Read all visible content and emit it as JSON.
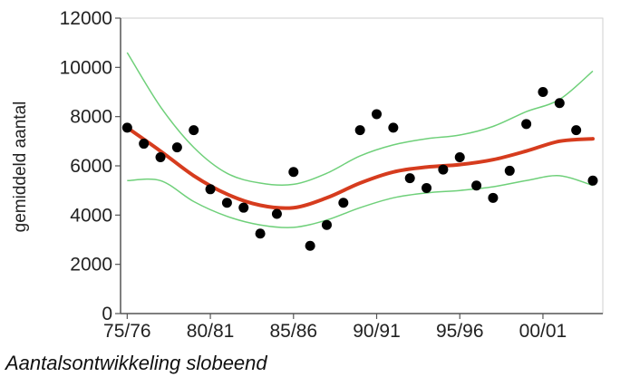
{
  "caption": "Aantalsontwikkeling slobeend",
  "chart_data": {
    "type": "scatter",
    "xlabel": "",
    "ylabel": "gemiddeld aantal",
    "ylim": [
      0,
      12000
    ],
    "yticks": [
      0,
      2000,
      4000,
      6000,
      8000,
      10000,
      12000
    ],
    "x_tick_labels": [
      "75/76",
      "80/81",
      "85/86",
      "90/91",
      "95/96",
      "00/01"
    ],
    "x_tick_positions": [
      1,
      6,
      11,
      16,
      21,
      26
    ],
    "xlim": [
      0.6,
      29.6
    ],
    "grid": false,
    "legend": "none",
    "colors": {
      "points": "#000000",
      "trend": "#d63c1e",
      "band": "#6fd07a",
      "axis": "#555555"
    },
    "series": [
      {
        "kind": "points",
        "x": [
          1,
          2,
          3,
          4,
          5,
          6,
          7,
          8,
          9,
          10,
          11,
          12,
          13,
          14,
          15,
          16,
          17,
          18,
          19,
          20,
          21,
          22,
          23,
          24,
          25,
          26,
          27,
          28,
          29
        ],
        "values": [
          7550,
          6900,
          6350,
          6750,
          7450,
          5050,
          4500,
          4300,
          3250,
          4050,
          5750,
          2750,
          3600,
          4500,
          7450,
          8100,
          7550,
          5500,
          5100,
          5850,
          6350,
          5200,
          4700,
          5800,
          7700,
          9000,
          8550,
          7450,
          5400
        ]
      },
      {
        "kind": "trend",
        "x": [
          1,
          3,
          5,
          7,
          9,
          11,
          13,
          15,
          17,
          19,
          21,
          23,
          25,
          27,
          29
        ],
        "values": [
          7550,
          6600,
          5600,
          4850,
          4400,
          4300,
          4700,
          5300,
          5750,
          5950,
          6050,
          6250,
          6600,
          7000,
          7100
        ]
      },
      {
        "kind": "upper-band",
        "x": [
          1,
          3,
          5,
          7,
          9,
          11,
          13,
          15,
          17,
          19,
          21,
          23,
          25,
          27,
          29
        ],
        "values": [
          10600,
          8400,
          6750,
          5700,
          5300,
          5250,
          5700,
          6400,
          6850,
          7100,
          7250,
          7600,
          8200,
          8700,
          9850
        ]
      },
      {
        "kind": "lower-band",
        "x": [
          1,
          3,
          5,
          7,
          9,
          11,
          13,
          15,
          17,
          19,
          21,
          23,
          25,
          27,
          29
        ],
        "values": [
          5400,
          5400,
          4550,
          3950,
          3600,
          3500,
          3800,
          4300,
          4700,
          4900,
          5000,
          5150,
          5400,
          5600,
          5200
        ]
      }
    ]
  }
}
